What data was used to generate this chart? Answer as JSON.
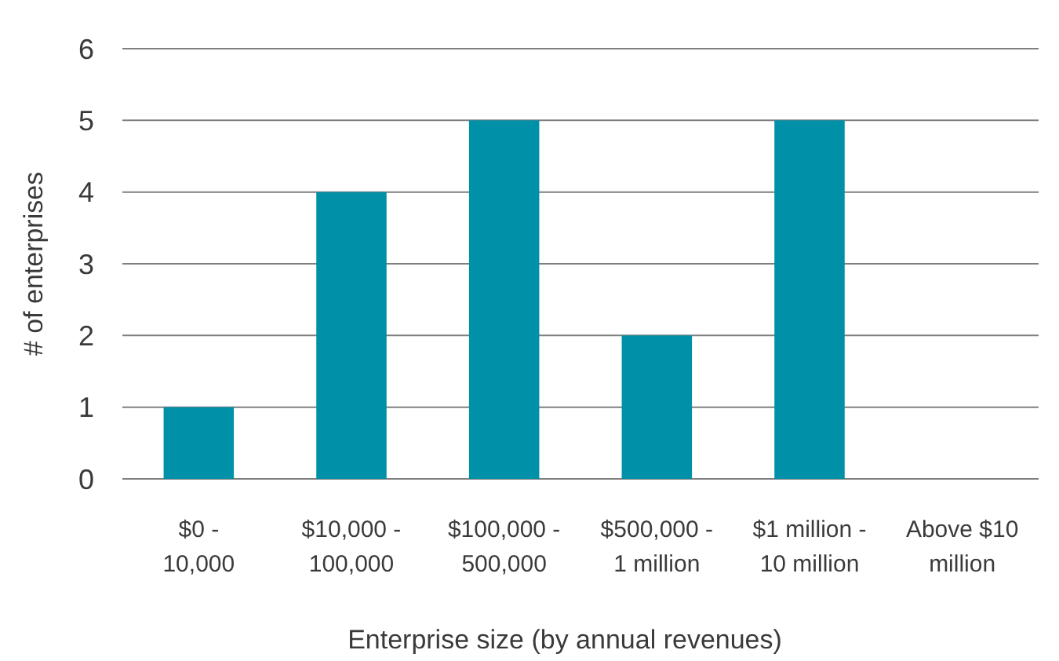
{
  "chart_data": {
    "type": "bar",
    "xlabel": "Enterprise size (by annual revenues)",
    "ylabel": "# of enterprises",
    "categories": [
      "$0 - 10,000",
      "$10,000 - 100,000",
      "$100,000 - 500,000",
      "$500,000 - 1 million",
      "$1 million - 10 million",
      "Above $10 million"
    ],
    "values": [
      1,
      4,
      5,
      2,
      5,
      0
    ],
    "color": "#0090a8",
    "ylim": [
      0,
      6
    ],
    "yticks": [
      0,
      1,
      2,
      3,
      4,
      5,
      6
    ],
    "grid": "y"
  }
}
